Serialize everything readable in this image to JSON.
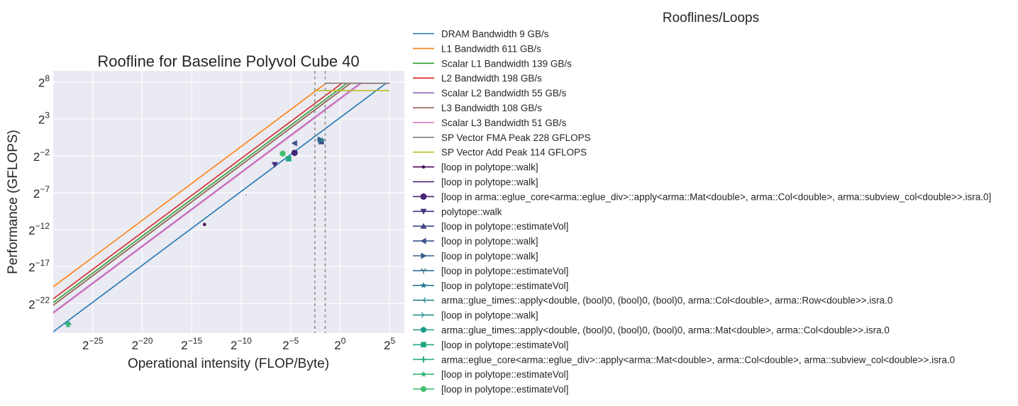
{
  "chart_data": {
    "type": "line",
    "title": "Roofline for Baseline Polyvol Cube 40",
    "xlabel": "Operational intensity (FLOP/Byte)",
    "ylabel": "Performance (GFLOPS)",
    "xscale": "log2",
    "yscale": "log2",
    "xlim_log2": [
      -29,
      6.5
    ],
    "ylim_log2": [
      -26,
      9.5
    ],
    "grid": true,
    "legend_title": "Rooflines/Loops",
    "legend_placement": "outside-right",
    "x_ticks": [
      {
        "exp": -25,
        "label": "2",
        "sup": "−25"
      },
      {
        "exp": -20,
        "label": "2",
        "sup": "−20"
      },
      {
        "exp": -15,
        "label": "2",
        "sup": "−15"
      },
      {
        "exp": -10,
        "label": "2",
        "sup": "−10"
      },
      {
        "exp": -5,
        "label": "2",
        "sup": "−5"
      },
      {
        "exp": 0,
        "label": "2",
        "sup": "0"
      },
      {
        "exp": 5,
        "label": "2",
        "sup": "5"
      }
    ],
    "y_ticks": [
      {
        "exp": 8,
        "label": "2",
        "sup": "8"
      },
      {
        "exp": 3,
        "label": "2",
        "sup": "3"
      },
      {
        "exp": -2,
        "label": "2",
        "sup": "−2"
      },
      {
        "exp": -7,
        "label": "2",
        "sup": "−7"
      },
      {
        "exp": -12,
        "label": "2",
        "sup": "−12"
      },
      {
        "exp": -17,
        "label": "2",
        "sup": "−17"
      },
      {
        "exp": -22,
        "label": "2",
        "sup": "−22"
      }
    ],
    "vlines_log2": [
      -2.55,
      -1.5
    ],
    "x_max_log2": 5,
    "rooflines": [
      {
        "name": "DRAM Bandwidth 9 GB/s",
        "kind": "bandwidth",
        "value": 9,
        "color": "#1f77b4"
      },
      {
        "name": "L1 Bandwidth 611 GB/s",
        "kind": "bandwidth",
        "value": 611,
        "color": "#ff7f0e"
      },
      {
        "name": "Scalar L1 Bandwidth 139 GB/s",
        "kind": "bandwidth",
        "value": 139,
        "color": "#2ca02c"
      },
      {
        "name": "L2 Bandwidth 198 GB/s",
        "kind": "bandwidth",
        "value": 198,
        "color": "#d62728"
      },
      {
        "name": "Scalar L2 Bandwidth 55 GB/s",
        "kind": "bandwidth",
        "value": 55,
        "color": "#9467bd"
      },
      {
        "name": "L3 Bandwidth 108 GB/s",
        "kind": "bandwidth",
        "value": 108,
        "color": "#8c564b"
      },
      {
        "name": "Scalar L3 Bandwidth 51 GB/s",
        "kind": "bandwidth",
        "value": 51,
        "color": "#e377c2"
      },
      {
        "name": "SP Vector FMA Peak 228 GFLOPS",
        "kind": "peak",
        "value": 228,
        "color": "#7f7f7f"
      },
      {
        "name": "SP Vector Add Peak 114 GFLOPS",
        "kind": "peak",
        "value": 114,
        "color": "#bcbd22"
      }
    ],
    "loops": [
      {
        "name": "[loop in polytope::walk]",
        "marker": "point",
        "color": "#440154",
        "x_log2": -13.7,
        "y_log2": -11.3
      },
      {
        "name": "[loop in polytope::walk]",
        "marker": "pixel",
        "color": "#471365",
        "x_log2": -9.5,
        "y_log2": -7.3
      },
      {
        "name": "[loop in arma::eglue_core<arma::eglue_div>::apply<arma::Mat<double>, arma::Col<double>, arma::subview_col<double>>.isra.0]",
        "marker": "circle",
        "color": "#482475",
        "x_log2": -4.6,
        "y_log2": -1.6
      },
      {
        "name": "polytope::walk",
        "marker": "triangle_down",
        "color": "#463480",
        "x_log2": -6.6,
        "y_log2": -3.2
      },
      {
        "name": "[loop in polytope::estimateVol]",
        "marker": "triangle_up",
        "color": "#414487",
        "x_log2": -1.9,
        "y_log2": -0.1
      },
      {
        "name": "[loop in polytope::walk]",
        "marker": "triangle_left",
        "color": "#3b528b",
        "x_log2": -4.6,
        "y_log2": -0.3
      },
      {
        "name": "[loop in polytope::walk]",
        "marker": "triangle_right",
        "color": "#355f8d",
        "x_log2": -2.0,
        "y_log2": 0.2
      },
      {
        "name": "[loop in polytope::estimateVol]",
        "marker": "tri_down",
        "color": "#2f6c8e",
        "x_log2": -2.1,
        "y_log2": 0.0
      },
      {
        "name": "[loop in polytope::estimateVol]",
        "marker": "star",
        "color": "#2a788e",
        "x_log2": -1.8,
        "y_log2": 0.1
      },
      {
        "name": "arma::glue_times::apply<double, (bool)0, (bool)0, (bool)0, arma::Col<double>, arma::Row<double>>.isra.0",
        "marker": "tri_left",
        "color": "#25848e",
        "x_log2": -27.5,
        "y_log2": -24.8
      },
      {
        "name": "[loop in polytope::walk]",
        "marker": "tri_right",
        "color": "#21918c",
        "x_log2": -27.5,
        "y_log2": -24.8
      },
      {
        "name": "arma::glue_times::apply<double, (bool)0, (bool)0, (bool)0, arma::Mat<double>, arma::Col<double>>.isra.0",
        "marker": "octagon",
        "color": "#1e9c89",
        "x_log2": -5.8,
        "y_log2": -1.7
      },
      {
        "name": "[loop in polytope::estimateVol]",
        "marker": "square",
        "color": "#22a884",
        "x_log2": -5.2,
        "y_log2": -2.4
      },
      {
        "name": "arma::eglue_core<arma::eglue_div>::apply<arma::Mat<double>, arma::Col<double>, arma::subview_col<double>>.isra.0",
        "marker": "thin_plus",
        "color": "#2ab07f",
        "x_log2": -27.5,
        "y_log2": -24.8
      },
      {
        "name": "[loop in polytope::estimateVol]",
        "marker": "star",
        "color": "#35b779",
        "x_log2": -27.5,
        "y_log2": -24.8
      },
      {
        "name": "[loop in polytope::estimateVol]",
        "marker": "octagon",
        "color": "#44bf70",
        "x_log2": -5.8,
        "y_log2": -1.7
      }
    ]
  }
}
